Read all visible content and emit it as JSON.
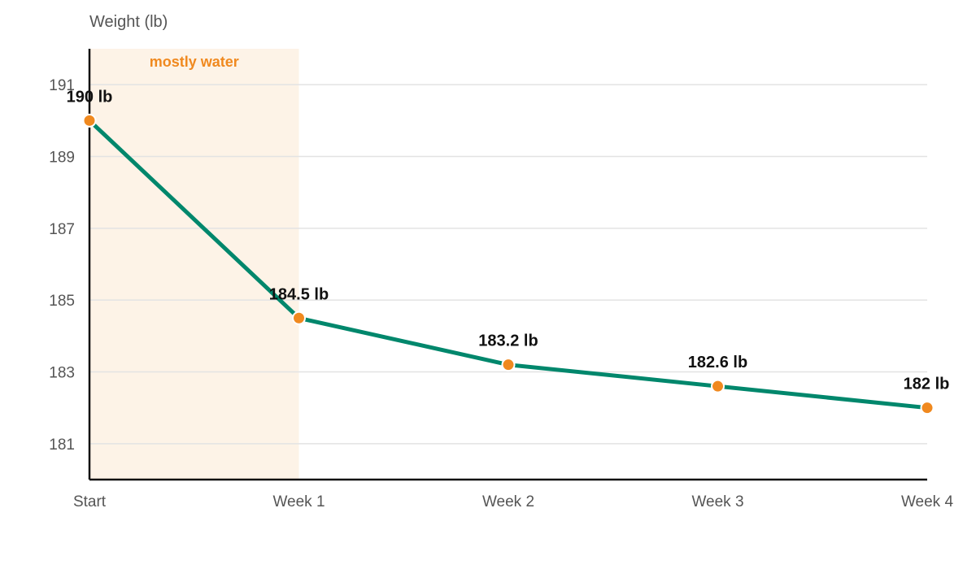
{
  "chart_data": {
    "type": "line",
    "title": "",
    "xlabel": "",
    "ylabel": "Weight (lb)",
    "categories": [
      "Start",
      "Week 1",
      "Week 2",
      "Week 3",
      "Week 4"
    ],
    "series": [
      {
        "values": [
          190,
          184.5,
          183.2,
          182.6,
          182
        ],
        "labels": [
          "190 lb",
          "184.5 lb",
          "183.2 lb",
          "182.6 lb",
          "182 lb"
        ],
        "color": "#00876C",
        "marker_color": "#F0891F"
      }
    ],
    "yticks": [
      181,
      183,
      185,
      187,
      189,
      191
    ],
    "ylim": [
      180,
      192
    ],
    "grid": true,
    "annotations": [
      {
        "text": "mostly water",
        "x_range": [
          "Start",
          "Week 1"
        ],
        "band_color": "#FDF3E7",
        "text_color": "#F0891F"
      }
    ]
  }
}
